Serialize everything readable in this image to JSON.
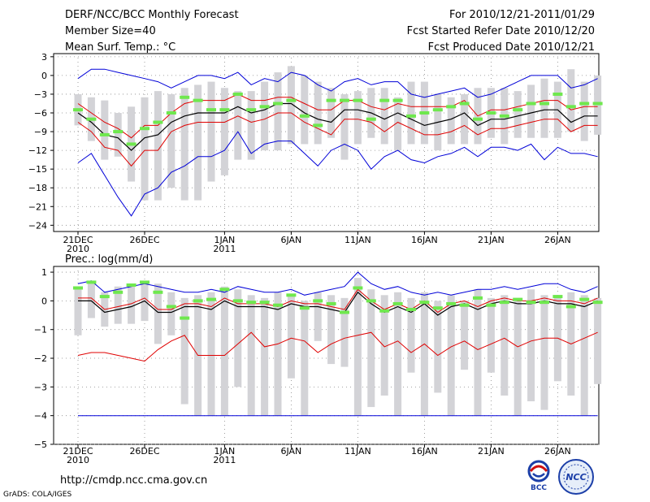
{
  "header": {
    "title": "DERF/NCC/BCC Monthly Forecast",
    "member_size": "Member Size=40",
    "variable": "Mean Surf. Temp.: °C",
    "period": "For 2010/12/21-2011/01/29",
    "start_date": "Fcst Started Refer Date 2010/12/20",
    "produced_date": "Fcst Produced Date 2010/12/21"
  },
  "lower_title": "Prec.: log(mm/d)",
  "footer": {
    "url": "http://cmdp.ncc.cma.gov.cn",
    "credit": "GrADS: COLA/IGES",
    "logo_bcc": "BCC",
    "logo_ncc": "NCC"
  },
  "colors": {
    "box": "#d3d3d7",
    "green": "#6fe84e",
    "red": "#e00000",
    "blue": "#0000d8",
    "mean": "#000000"
  },
  "chart_data": [
    {
      "type": "line",
      "title": "Mean Surf. Temp.: °C",
      "days": 40,
      "ylim": [
        -25,
        3.5
      ],
      "yticks": [
        3,
        0,
        -3,
        -6,
        -9,
        -12,
        -15,
        -18,
        -21,
        -24
      ],
      "ytick_labels": [
        "3",
        "0",
        "−3",
        "−6",
        "−9",
        "−12",
        "−15",
        "−18",
        "−21",
        "−24"
      ],
      "xticks": [
        {
          "day": 1,
          "label": "21DEC",
          "sub": "2010"
        },
        {
          "day": 6,
          "label": "26DEC",
          "sub": ""
        },
        {
          "day": 12,
          "label": "1JAN",
          "sub": "2011"
        },
        {
          "day": 17,
          "label": "6JAN",
          "sub": ""
        },
        {
          "day": 22,
          "label": "11JAN",
          "sub": ""
        },
        {
          "day": 27,
          "label": "16JAN",
          "sub": ""
        },
        {
          "day": 32,
          "label": "21JAN",
          "sub": ""
        },
        {
          "day": 37,
          "label": "26JAN",
          "sub": ""
        }
      ],
      "box_low": [
        -8,
        -10.5,
        -13.5,
        -13,
        -17,
        -20,
        -20,
        -18,
        -20,
        -20,
        -17,
        -16,
        -13.5,
        -13.5,
        -12,
        -12,
        -11,
        -11,
        -11,
        -10,
        -13.5,
        -11,
        -10,
        -11,
        -12,
        -11,
        -11,
        -12,
        -11,
        -11,
        -11,
        -10,
        -11,
        -10,
        -10,
        -10,
        -10,
        -9,
        -10.5,
        -9.5
      ],
      "box_high": [
        -3,
        -3.5,
        -4,
        -6,
        -5,
        -3.5,
        -2.5,
        -3,
        -2,
        -1.5,
        -1,
        -2,
        -2.5,
        -2.5,
        -1,
        0.5,
        1.5,
        0,
        -1,
        -2,
        -3,
        -2.5,
        -2,
        -2,
        -3.5,
        -1,
        -1,
        -3,
        -3.5,
        -3,
        -2,
        -2,
        -2,
        -2.5,
        -1.5,
        -0.5,
        -1,
        1,
        -1,
        0
      ],
      "green": [
        -5.5,
        -7,
        -9.5,
        -9,
        -11,
        -8.5,
        -7.5,
        -6,
        -3.5,
        -4,
        -5.5,
        -5.5,
        -3,
        -5.5,
        -5,
        -4.5,
        -4,
        -6.5,
        -8,
        -4,
        -4,
        -4,
        -7,
        -4,
        -4,
        -6.5,
        -6,
        -5.5,
        -5,
        -4.5,
        -7,
        -6,
        -6.5,
        -5.5,
        -4.5,
        -4.5,
        -3,
        -5,
        -4.5,
        -4.5
      ],
      "mean": [
        -6,
        -7.5,
        -9.5,
        -10,
        -12,
        -10,
        -9.5,
        -7.5,
        -6.5,
        -6,
        -6,
        -6,
        -5,
        -6,
        -5.5,
        -4.5,
        -4.5,
        -6,
        -7,
        -7.5,
        -5.5,
        -5.5,
        -6,
        -7,
        -6,
        -7,
        -8,
        -7.5,
        -7,
        -6,
        -8,
        -7,
        -7,
        -6.5,
        -6,
        -5.5,
        -5.5,
        -7.5,
        -6.5,
        -6.5
      ],
      "red_high": [
        -4.5,
        -6,
        -7.5,
        -8.5,
        -10,
        -8,
        -8,
        -6,
        -4.5,
        -4,
        -4,
        -4,
        -3,
        -4,
        -4,
        -3.5,
        -3.5,
        -4.5,
        -5.5,
        -5.5,
        -4,
        -4,
        -5,
        -5.5,
        -4.5,
        -5,
        -5,
        -5,
        -5,
        -4,
        -6.5,
        -5.5,
        -5.5,
        -5,
        -4.5,
        -4,
        -4,
        -5.5,
        -5,
        -5
      ],
      "red_low": [
        -7.5,
        -9,
        -11.5,
        -12,
        -14.5,
        -12,
        -12,
        -9,
        -8,
        -7.5,
        -7.5,
        -7.5,
        -6.5,
        -7.5,
        -7,
        -6,
        -6,
        -7.5,
        -8.5,
        -9.5,
        -7,
        -7,
        -7.5,
        -9,
        -7.5,
        -8.5,
        -9.5,
        -9.5,
        -9,
        -8,
        -9.5,
        -8.5,
        -8.5,
        -8,
        -7.5,
        -7,
        -7,
        -9,
        -8,
        -8
      ],
      "blue_high": [
        -0.5,
        1,
        1,
        0.5,
        0,
        -0.5,
        -1,
        -2,
        -1,
        0,
        0,
        -0.5,
        0.5,
        -1.5,
        -0.5,
        -1,
        0.5,
        0,
        -1.5,
        -2.5,
        -1,
        -0.5,
        -1.5,
        -1,
        -1,
        -3,
        -3.5,
        -3,
        -2.5,
        -2,
        -3.5,
        -3,
        -2,
        -1,
        0,
        0,
        0,
        -2,
        -1.5,
        -0.5
      ],
      "blue_low": [
        -14,
        -12.5,
        -16,
        -19.5,
        -22.5,
        -19,
        -18,
        -15.5,
        -14.5,
        -13,
        -13,
        -12,
        -9,
        -12.5,
        -11,
        -10.5,
        -10.5,
        -12.5,
        -14.5,
        -12,
        -11,
        -12,
        -15,
        -13,
        -12,
        -13.5,
        -14,
        -13,
        -12.5,
        -11.5,
        -13,
        -11.5,
        -11.5,
        -12,
        -11,
        -13.5,
        -11.5,
        -12.5,
        -12.5,
        -13
      ]
    },
    {
      "type": "line",
      "title": "Prec.: log(mm/d)",
      "days": 40,
      "ylim": [
        -5,
        1.2
      ],
      "yticks": [
        1,
        0,
        -1,
        -2,
        -3,
        -4,
        -5
      ],
      "ytick_labels": [
        "1",
        "0",
        "−1",
        "−2",
        "−3",
        "−4",
        "−5"
      ],
      "xticks": [
        {
          "day": 1,
          "label": "21DEC",
          "sub": "2010"
        },
        {
          "day": 6,
          "label": "26DEC",
          "sub": ""
        },
        {
          "day": 12,
          "label": "1JAN",
          "sub": "2011"
        },
        {
          "day": 17,
          "label": "6JAN",
          "sub": ""
        },
        {
          "day": 22,
          "label": "11JAN",
          "sub": ""
        },
        {
          "day": 27,
          "label": "16JAN",
          "sub": ""
        },
        {
          "day": 32,
          "label": "21JAN",
          "sub": ""
        },
        {
          "day": 37,
          "label": "26JAN",
          "sub": ""
        }
      ],
      "box_low": [
        -1.2,
        -0.6,
        -0.9,
        -0.8,
        -0.8,
        -0.7,
        -1.5,
        -1.2,
        -3.6,
        -4,
        -4,
        -4,
        -3,
        -4,
        -4,
        -4,
        -2.7,
        -4,
        -1.4,
        -2.2,
        -2.3,
        -4,
        -3.7,
        -3.3,
        -4,
        -2.5,
        -4,
        -3.2,
        -4,
        -2.4,
        -4,
        -2.5,
        -3.3,
        -4,
        -3.5,
        -3.8,
        -2.8,
        -3.3,
        -4,
        -2.9
      ],
      "box_high": [
        0.5,
        0.6,
        0.3,
        0.5,
        0.6,
        0.7,
        0.6,
        0.3,
        0.1,
        0.2,
        0.3,
        0.5,
        0.4,
        0.2,
        0.1,
        0.3,
        0.2,
        0,
        0.3,
        0.2,
        0.1,
        0.8,
        0.4,
        0.2,
        0.3,
        0.1,
        0.3,
        0,
        0.2,
        0,
        0.4,
        0.1,
        0.2,
        0.1,
        0.4,
        0.2,
        0.2,
        0.3,
        0.2,
        0.1
      ],
      "green": [
        0.45,
        0.65,
        0.15,
        0.3,
        0.55,
        0.65,
        0.3,
        -0.2,
        -0.6,
        0,
        0.05,
        0.4,
        0,
        -0.05,
        -0.05,
        -0.15,
        0.2,
        -0.25,
        0,
        -0.1,
        -0.4,
        0.45,
        0,
        -0.35,
        -0.1,
        -0.3,
        -0.05,
        -0.25,
        -0.1,
        -0.15,
        0.1,
        -0.15,
        -0.05,
        0.05,
        -0.05,
        -0.05,
        0.15,
        -0.2,
        0.05,
        -0.05
      ],
      "mean": [
        0,
        0,
        -0.4,
        -0.3,
        -0.2,
        0,
        -0.4,
        -0.4,
        -0.2,
        -0.2,
        -0.3,
        0,
        -0.2,
        -0.2,
        -0.2,
        -0.3,
        -0.1,
        -0.2,
        -0.2,
        -0.3,
        -0.4,
        0.3,
        -0.1,
        -0.4,
        -0.2,
        -0.4,
        -0.1,
        -0.5,
        -0.2,
        -0.1,
        -0.3,
        -0.1,
        0,
        -0.1,
        -0.1,
        0,
        -0.1,
        -0.1,
        -0.2,
        0
      ],
      "red_high": [
        0.1,
        0.1,
        -0.3,
        -0.2,
        -0.1,
        0.1,
        -0.3,
        -0.3,
        -0.1,
        -0.1,
        -0.2,
        0.1,
        -0.1,
        -0.1,
        -0.1,
        -0.2,
        0,
        -0.1,
        -0.1,
        -0.2,
        -0.3,
        0.4,
        0,
        -0.3,
        -0.1,
        -0.3,
        0,
        -0.4,
        -0.1,
        0,
        -0.2,
        0,
        0.1,
        0,
        0,
        0.1,
        0,
        0,
        -0.1,
        0.1
      ],
      "red_low": [
        -1.9,
        -1.8,
        -1.8,
        -1.9,
        -2,
        -2.1,
        -1.7,
        -1.4,
        -1.2,
        -1.9,
        -1.9,
        -1.9,
        -1.5,
        -1.1,
        -1.6,
        -1.5,
        -1.3,
        -1.4,
        -1.8,
        -1.5,
        -1.3,
        -1.2,
        -1.1,
        -1.6,
        -1.4,
        -1.8,
        -1.5,
        -1.9,
        -1.6,
        -1.4,
        -1.7,
        -1.5,
        -1.3,
        -1.6,
        -1.4,
        -1.3,
        -1.3,
        -1.5,
        -1.3,
        -1.1
      ],
      "blue_high": [
        0.6,
        0.7,
        0.3,
        0.4,
        0.5,
        0.6,
        0.5,
        0.4,
        0.3,
        0.3,
        0.4,
        0.3,
        0.5,
        0.4,
        0.3,
        0.3,
        0.4,
        0.2,
        0.3,
        0.4,
        0.5,
        1,
        0.6,
        0.4,
        0.5,
        0.3,
        0.2,
        0.3,
        0.2,
        0.3,
        0.4,
        0.4,
        0.5,
        0.4,
        0.5,
        0.6,
        0.6,
        0.4,
        0.3,
        0.5
      ],
      "blue_low": [
        -4,
        -4,
        -4,
        -4,
        -4,
        -4,
        -4,
        -4,
        -4,
        -4,
        -4,
        -4,
        -4,
        -4,
        -4,
        -4,
        -4,
        -4,
        -4,
        -4,
        -4,
        -4,
        -4,
        -4,
        -4,
        -4,
        -4,
        -4,
        -4,
        -4,
        -4,
        -4,
        -4,
        -4,
        -4,
        -4,
        -4,
        -4,
        -4,
        -4
      ]
    }
  ]
}
